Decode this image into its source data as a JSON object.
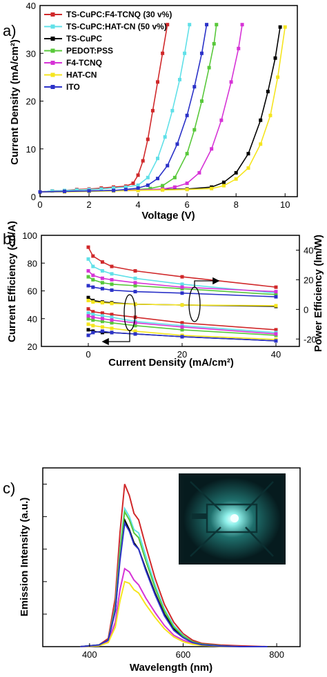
{
  "colors": {
    "TS-CuPC:F4-TCNQ (30 v%)": "#d0282a",
    "TS-CuPC:HAT-CN (50 v%)": "#60e0e8",
    "TS-CuPC": "#000000",
    "PEDOT:PSS": "#58c83a",
    "F4-TCNQ": "#d633d6",
    "HAT-CN": "#f5e51e",
    "ITO": "#2b32c8"
  },
  "inset_icon": "device-photo-glowing-pixel",
  "arrow_icon": "axis-pointer-arrow",
  "chart_data": [
    {
      "panel": "a)",
      "type": "line",
      "xlabel": "Voltage (V)",
      "ylabel": "Current Density (mA/cm²)",
      "xlim": [
        0,
        10.5
      ],
      "ylim": [
        0,
        40
      ],
      "xticks": [
        "0",
        "2",
        "4",
        "6",
        "8",
        "10"
      ],
      "yticks": [
        "0",
        "10",
        "20",
        "30",
        "40"
      ],
      "legend_position": "top-left",
      "series": [
        {
          "name": "TS-CuPC:F4-TCNQ (30 v%)",
          "x": [
            0,
            0.5,
            1,
            1.5,
            2,
            2.5,
            3,
            3.5,
            3.8,
            4.0,
            4.2,
            4.4,
            4.6,
            4.8,
            5.0,
            5.2
          ],
          "y": [
            1.0,
            1.2,
            1.3,
            1.5,
            1.6,
            1.8,
            2.0,
            2.2,
            2.8,
            4.5,
            7.5,
            12,
            18,
            24,
            30,
            36
          ]
        },
        {
          "name": "TS-CuPC:HAT-CN (50 v%)",
          "x": [
            0,
            0.5,
            1,
            1.5,
            2,
            2.5,
            3,
            3.5,
            4,
            4.4,
            4.8,
            5.1,
            5.4,
            5.7,
            5.9,
            6.1
          ],
          "y": [
            1.0,
            1.2,
            1.3,
            1.4,
            1.5,
            1.6,
            1.8,
            2.0,
            2.4,
            4.0,
            8.0,
            12.5,
            18,
            24.5,
            30,
            36
          ]
        },
        {
          "name": "TS-CuPC",
          "x": [
            0,
            1,
            2,
            3,
            4,
            5,
            6,
            7,
            7.5,
            8,
            8.5,
            9,
            9.3,
            9.6,
            9.8
          ],
          "y": [
            1.0,
            1.1,
            1.2,
            1.3,
            1.4,
            1.5,
            1.6,
            2.0,
            3.0,
            5.0,
            9.0,
            16,
            22,
            29,
            35.5
          ]
        },
        {
          "name": "PEDOT:PSS",
          "x": [
            0,
            1,
            2,
            3,
            4,
            4.5,
            5,
            5.5,
            6,
            6.3,
            6.6,
            6.9,
            7.1,
            7.2
          ],
          "y": [
            1.0,
            1.1,
            1.2,
            1.3,
            1.5,
            1.7,
            2.3,
            4.0,
            9.0,
            14,
            20,
            27,
            32,
            36
          ]
        },
        {
          "name": "F4-TCNQ",
          "x": [
            0,
            1,
            2,
            3,
            4,
            5,
            5.5,
            6,
            6.5,
            7,
            7.4,
            7.8,
            8.1,
            8.25
          ],
          "y": [
            1.0,
            1.1,
            1.2,
            1.3,
            1.4,
            1.6,
            2.0,
            2.8,
            5.0,
            10,
            16,
            24,
            31,
            36
          ]
        },
        {
          "name": "HAT-CN",
          "x": [
            0,
            1,
            2,
            3,
            4,
            5,
            6,
            7,
            7.5,
            8,
            8.5,
            9,
            9.4,
            9.7,
            10.0
          ],
          "y": [
            1.0,
            1.0,
            1.1,
            1.2,
            1.3,
            1.4,
            1.5,
            1.7,
            2.3,
            3.7,
            6.0,
            11,
            17,
            25,
            35.5
          ]
        },
        {
          "name": "ITO",
          "x": [
            0,
            1,
            2,
            3,
            3.5,
            4,
            4.4,
            4.8,
            5.2,
            5.6,
            6.0,
            6.3,
            6.6,
            6.8
          ],
          "y": [
            1.0,
            1.1,
            1.2,
            1.3,
            1.5,
            1.8,
            2.4,
            3.8,
            6.5,
            11,
            17,
            23,
            30,
            36
          ]
        }
      ]
    },
    {
      "panel": "b)",
      "type": "line",
      "xlabel": "Current Density (mA/cm²)",
      "ylabel": "Current Efficiency (cd/A)",
      "ylabel_right": "Power Efficiency (lm/W)",
      "xlim": [
        -10,
        45
      ],
      "ylim": [
        20,
        100
      ],
      "ylim_right": [
        -25,
        50
      ],
      "xticks": [
        "0",
        "20",
        "40"
      ],
      "yticks": [
        "20",
        "40",
        "60",
        "80",
        "100"
      ],
      "yticks_right": [
        "-20",
        "0",
        "20",
        "40"
      ],
      "power_efficiency_axis": "right",
      "current_efficiency_axis": "left",
      "power_efficiency": [
        {
          "name": "TS-CuPC:F4-TCNQ (30 v%)",
          "x": [
            0,
            1,
            3,
            5,
            10,
            20,
            40
          ],
          "y": [
            42,
            36,
            32,
            29,
            26,
            22,
            15
          ]
        },
        {
          "name": "TS-CuPC:HAT-CN (50 v%)",
          "x": [
            0,
            1,
            3,
            5,
            10,
            20,
            40
          ],
          "y": [
            34,
            29,
            26,
            24,
            21,
            17,
            11
          ]
        },
        {
          "name": "TS-CuPC",
          "x": [
            0,
            1,
            3,
            5,
            10,
            20,
            40
          ],
          "y": [
            8,
            6,
            5,
            4.5,
            3.5,
            3,
            2
          ]
        },
        {
          "name": "PEDOT:PSS",
          "x": [
            0,
            1,
            3,
            5,
            10,
            20,
            40
          ],
          "y": [
            22,
            20,
            18,
            17,
            16,
            14,
            10
          ]
        },
        {
          "name": "F4-TCNQ",
          "x": [
            0,
            1,
            3,
            5,
            10,
            20,
            40
          ],
          "y": [
            26,
            23,
            21,
            20,
            18,
            15,
            12
          ]
        },
        {
          "name": "HAT-CN",
          "x": [
            0,
            1,
            3,
            5,
            10,
            20,
            40
          ],
          "y": [
            6,
            5,
            4.5,
            4,
            3.5,
            3,
            2.5
          ]
        },
        {
          "name": "ITO",
          "x": [
            0,
            1,
            3,
            5,
            10,
            20,
            40
          ],
          "y": [
            16,
            15,
            14,
            13,
            12,
            11,
            8.5
          ]
        }
      ],
      "current_efficiency": [
        {
          "name": "TS-CuPC:F4-TCNQ (30 v%)",
          "x": [
            0,
            1,
            3,
            5,
            10,
            20,
            40
          ],
          "y": [
            47,
            45,
            44,
            43,
            41,
            37,
            32
          ]
        },
        {
          "name": "TS-CuPC:HAT-CN (50 v%)",
          "x": [
            0,
            1,
            3,
            5,
            10,
            20,
            40
          ],
          "y": [
            44,
            43,
            42,
            41,
            38,
            35,
            30
          ]
        },
        {
          "name": "TS-CuPC",
          "x": [
            0,
            1,
            3,
            5,
            10,
            20,
            40
          ],
          "y": [
            32,
            31,
            30,
            30,
            29,
            27,
            24
          ]
        },
        {
          "name": "PEDOT:PSS",
          "x": [
            0,
            1,
            3,
            5,
            10,
            20,
            40
          ],
          "y": [
            40,
            39,
            38,
            37,
            35,
            32,
            28
          ]
        },
        {
          "name": "F4-TCNQ",
          "x": [
            0,
            1,
            3,
            5,
            10,
            20,
            40
          ],
          "y": [
            42,
            41,
            40,
            39,
            37,
            34,
            29
          ]
        },
        {
          "name": "HAT-CN",
          "x": [
            0,
            1,
            3,
            5,
            10,
            20,
            40
          ],
          "y": [
            36,
            35,
            34,
            33,
            31,
            28,
            25
          ]
        },
        {
          "name": "ITO",
          "x": [
            0,
            1,
            3,
            5,
            10,
            20,
            40
          ],
          "y": [
            28,
            30,
            31,
            30,
            29,
            27,
            24
          ]
        }
      ]
    },
    {
      "panel": "c)",
      "type": "line",
      "xlabel": "Wavelength (nm)",
      "ylabel": "Emission Intensity (a.u.)",
      "xlim": [
        300,
        850
      ],
      "ylim": [
        0,
        1.1
      ],
      "xticks": [
        "400",
        "600",
        "800"
      ],
      "series": [
        {
          "name": "TS-CuPC:F4-TCNQ (30 v%)",
          "x": [
            380,
            420,
            440,
            455,
            465,
            475,
            485,
            495,
            505,
            520,
            540,
            560,
            580,
            600,
            620,
            640,
            680,
            720,
            780
          ],
          "y": [
            0,
            0.01,
            0.05,
            0.3,
            0.7,
            1.0,
            0.93,
            0.82,
            0.78,
            0.62,
            0.42,
            0.26,
            0.15,
            0.08,
            0.04,
            0.02,
            0.01,
            0.005,
            0
          ]
        },
        {
          "name": "TS-CuPC:HAT-CN (50 v%)",
          "x": [
            380,
            420,
            440,
            455,
            465,
            475,
            485,
            495,
            505,
            520,
            540,
            560,
            580,
            600,
            620,
            640,
            680,
            720,
            780
          ],
          "y": [
            0,
            0.01,
            0.04,
            0.25,
            0.6,
            0.85,
            0.8,
            0.72,
            0.7,
            0.56,
            0.38,
            0.23,
            0.13,
            0.07,
            0.03,
            0.015,
            0.005,
            0,
            0
          ]
        },
        {
          "name": "TS-CuPC",
          "x": [
            380,
            420,
            440,
            455,
            465,
            475,
            485,
            495,
            505,
            520,
            540,
            560,
            580,
            600,
            620,
            640,
            680,
            720,
            780
          ],
          "y": [
            0,
            0.01,
            0.04,
            0.22,
            0.55,
            0.78,
            0.72,
            0.64,
            0.6,
            0.48,
            0.33,
            0.2,
            0.11,
            0.06,
            0.03,
            0.015,
            0.005,
            0,
            0
          ]
        },
        {
          "name": "PEDOT:PSS",
          "x": [
            380,
            420,
            440,
            455,
            465,
            475,
            485,
            495,
            505,
            520,
            540,
            560,
            580,
            600,
            620,
            640,
            680,
            720,
            780
          ],
          "y": [
            0,
            0.01,
            0.04,
            0.24,
            0.58,
            0.83,
            0.78,
            0.7,
            0.67,
            0.53,
            0.36,
            0.22,
            0.12,
            0.065,
            0.03,
            0.015,
            0.005,
            0,
            0
          ]
        },
        {
          "name": "F4-TCNQ",
          "x": [
            380,
            420,
            440,
            455,
            465,
            475,
            485,
            495,
            505,
            520,
            540,
            560,
            580,
            600,
            620,
            640,
            680,
            720,
            780
          ],
          "y": [
            0,
            0.005,
            0.03,
            0.15,
            0.35,
            0.48,
            0.46,
            0.41,
            0.38,
            0.3,
            0.21,
            0.13,
            0.07,
            0.04,
            0.02,
            0.01,
            0.003,
            0,
            0
          ]
        },
        {
          "name": "HAT-CN",
          "x": [
            380,
            420,
            440,
            455,
            465,
            475,
            485,
            495,
            505,
            520,
            540,
            560,
            580,
            600,
            620,
            640,
            680,
            720,
            780
          ],
          "y": [
            0,
            0.005,
            0.025,
            0.12,
            0.28,
            0.4,
            0.39,
            0.35,
            0.33,
            0.26,
            0.18,
            0.11,
            0.06,
            0.03,
            0.015,
            0.008,
            0.002,
            0,
            0
          ]
        },
        {
          "name": "ITO",
          "x": [
            380,
            420,
            440,
            455,
            465,
            475,
            485,
            495,
            505,
            520,
            540,
            560,
            580,
            600,
            620,
            640,
            680,
            720,
            780
          ],
          "y": [
            0,
            0.01,
            0.04,
            0.22,
            0.53,
            0.76,
            0.71,
            0.63,
            0.6,
            0.47,
            0.32,
            0.19,
            0.1,
            0.055,
            0.025,
            0.012,
            0.004,
            0,
            0
          ]
        }
      ]
    }
  ]
}
